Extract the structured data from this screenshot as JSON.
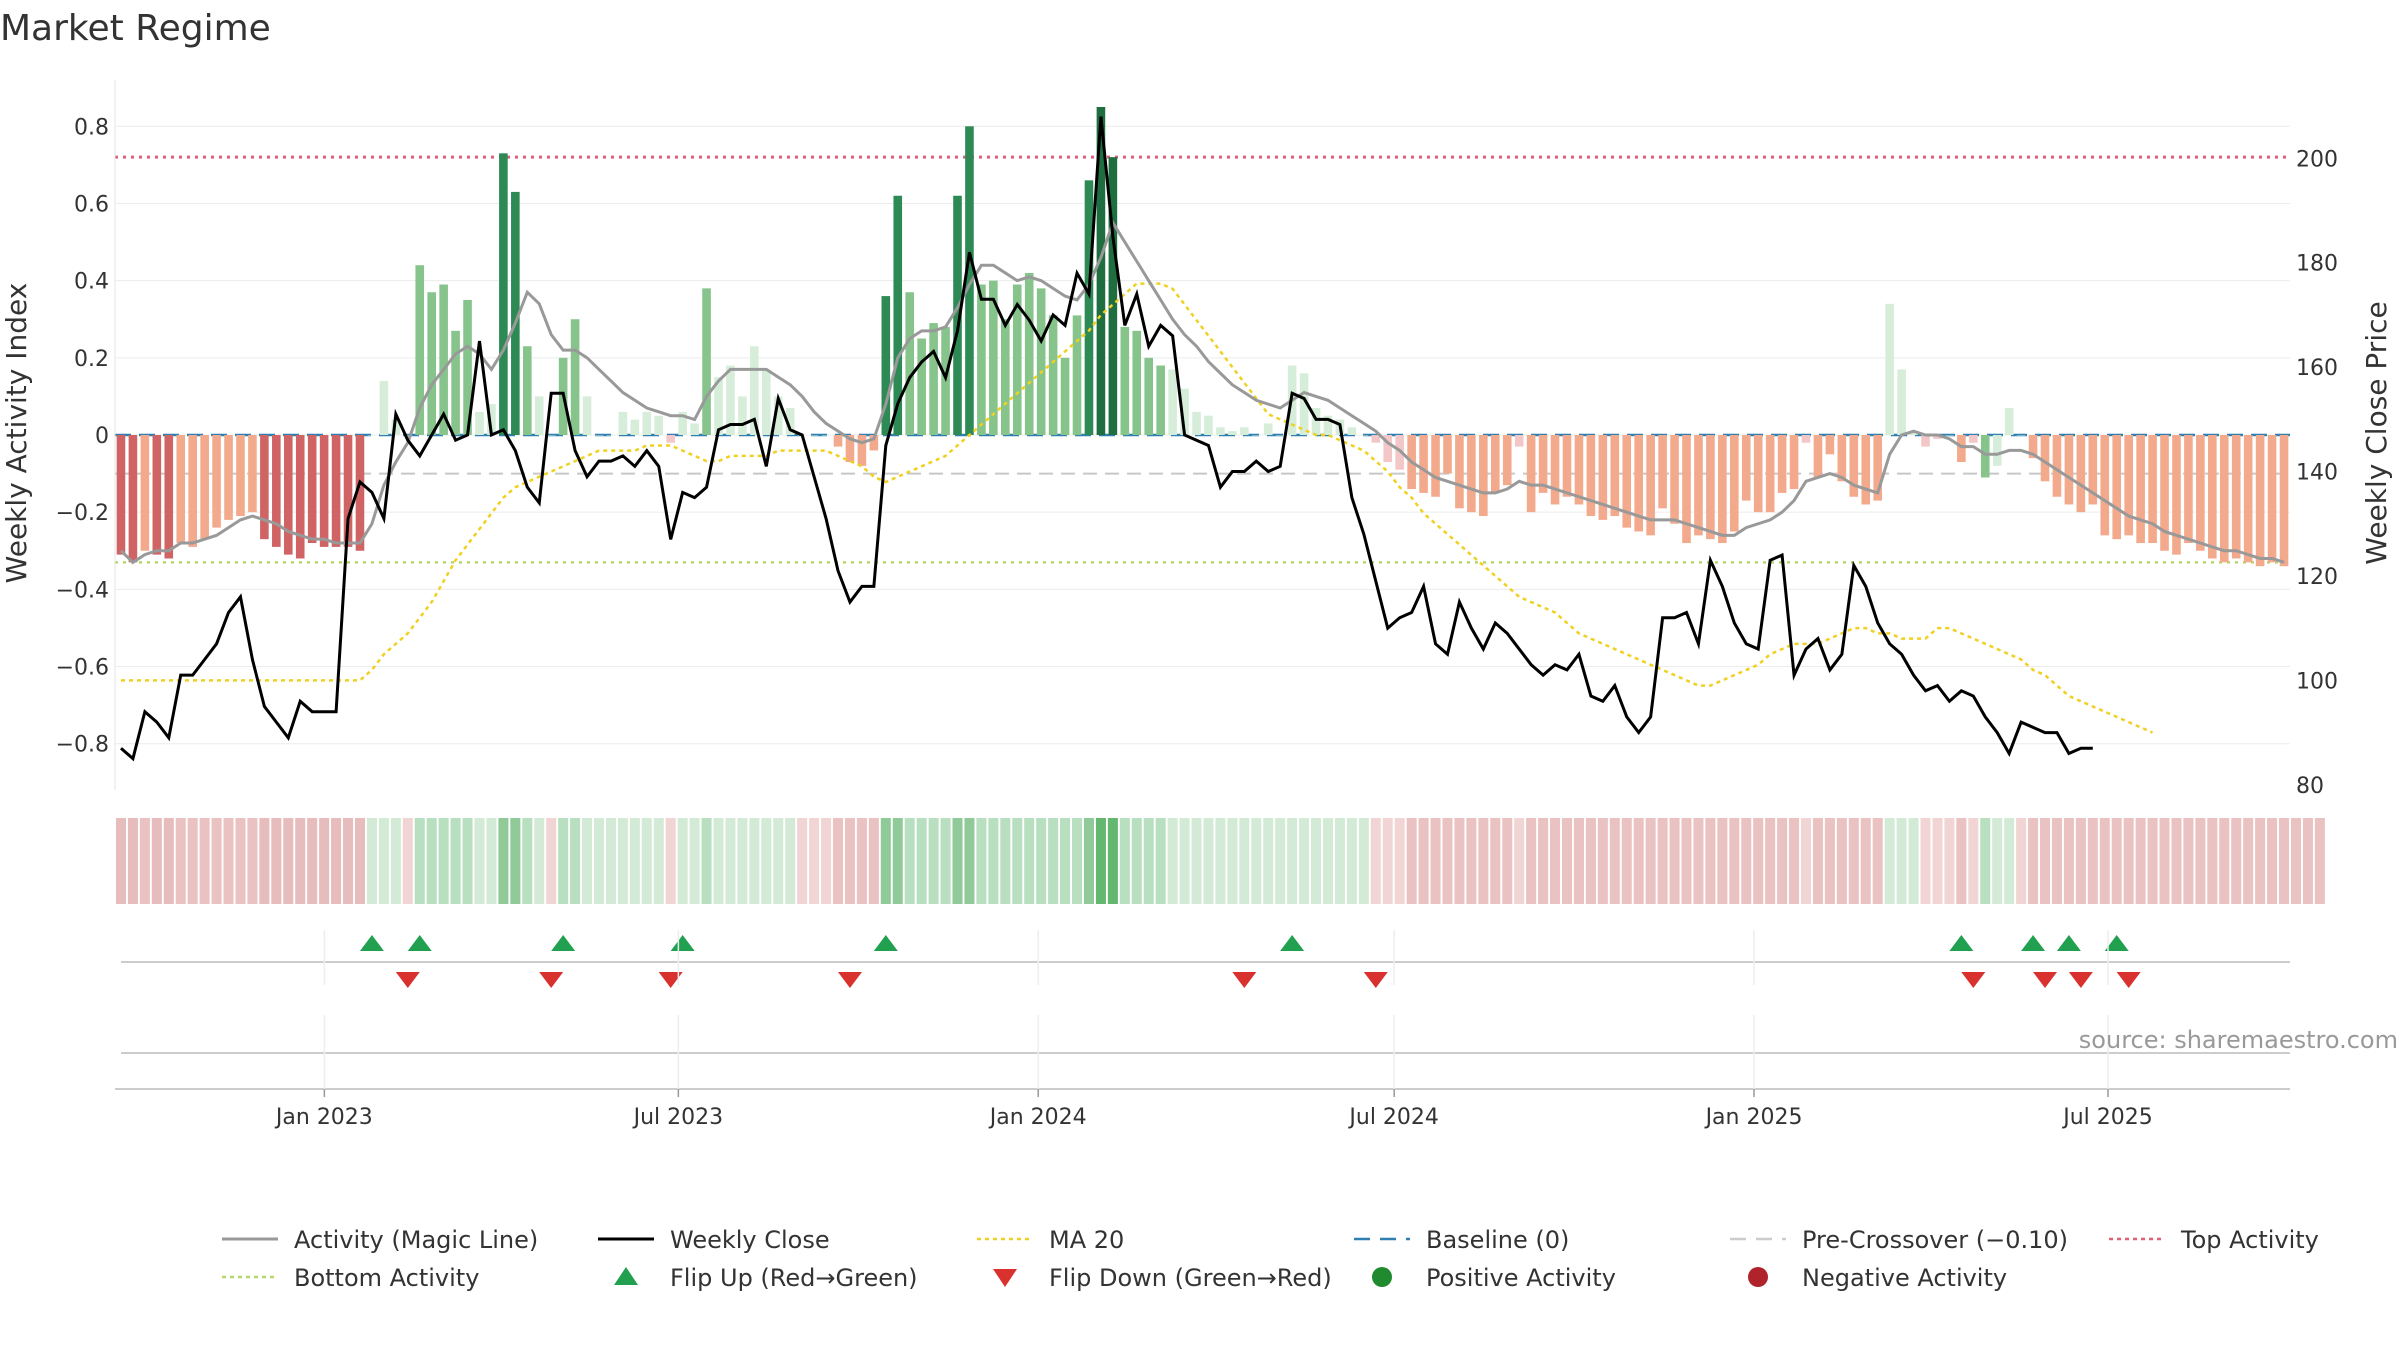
{
  "chart_data": {
    "type": "bar",
    "title": "Market Regime",
    "ylabel_left": "Weekly Activity Index",
    "ylabel_right": "Weekly Close Price",
    "ylim_left": [
      -0.92,
      0.92
    ],
    "ylim_right": [
      79,
      215
    ],
    "yticks_left": [
      0.8,
      0.6,
      0.4,
      0.2,
      0,
      -0.2,
      -0.4,
      -0.6,
      -0.8
    ],
    "yticks_left_labels": [
      "0.8",
      "0.6",
      "0.4",
      "0.2",
      "0",
      "−0.2",
      "−0.4",
      "−0.6",
      "−0.8"
    ],
    "yticks_right": [
      200,
      180,
      160,
      140,
      120,
      100,
      80
    ],
    "yticks_right_labels": [
      "200",
      "180",
      "160",
      "140",
      "120",
      "100",
      "80"
    ],
    "x_start": "2022-09-19",
    "x_end": "2025-09-29",
    "x_ticks": [
      {
        "date": "2023-01-01",
        "label": "Jan 2023"
      },
      {
        "date": "2023-07-01",
        "label": "Jul 2023"
      },
      {
        "date": "2024-01-01",
        "label": "Jan 2024"
      },
      {
        "date": "2024-07-01",
        "label": "Jul 2024"
      },
      {
        "date": "2025-01-01",
        "label": "Jan 2025"
      },
      {
        "date": "2025-07-01",
        "label": "Jul 2025"
      }
    ],
    "top_activity": 0.72,
    "bottom_activity": -0.33,
    "pre_crossover": -0.1,
    "baseline": 0,
    "activity": [
      -0.31,
      -0.33,
      -0.3,
      -0.31,
      -0.32,
      -0.28,
      -0.29,
      -0.27,
      -0.24,
      -0.22,
      -0.21,
      -0.2,
      -0.27,
      -0.29,
      -0.31,
      -0.32,
      -0.28,
      -0.29,
      -0.29,
      -0.29,
      -0.3,
      0.0,
      0.14,
      0.04,
      0.0,
      0.44,
      0.37,
      0.39,
      0.27,
      0.35,
      0.06,
      0.08,
      0.73,
      0.63,
      0.23,
      0.1,
      0.0,
      0.2,
      0.3,
      0.1,
      0.0,
      0.0,
      0.06,
      0.04,
      0.06,
      0.05,
      -0.02,
      0.06,
      0.03,
      0.38,
      0.15,
      0.18,
      0.1,
      0.23,
      0.17,
      0.1,
      0.07,
      0.0,
      0.0,
      0.0,
      -0.03,
      -0.07,
      -0.08,
      -0.04,
      0.36,
      0.62,
      0.37,
      0.25,
      0.29,
      0.28,
      0.62,
      0.8,
      0.39,
      0.4,
      0.3,
      0.39,
      0.42,
      0.38,
      0.31,
      0.2,
      0.31,
      0.66,
      0.85,
      0.72,
      0.28,
      0.27,
      0.2,
      0.18,
      0.17,
      0.12,
      0.06,
      0.05,
      0.02,
      0.01,
      0.02,
      0.0,
      0.03,
      0.0,
      0.18,
      0.16,
      0.07,
      0.05,
      0.04,
      0.02,
      0.0,
      -0.02,
      -0.07,
      -0.09,
      -0.14,
      -0.15,
      -0.16,
      -0.1,
      -0.19,
      -0.2,
      -0.21,
      -0.15,
      -0.13,
      -0.03,
      -0.2,
      -0.15,
      -0.18,
      -0.16,
      -0.18,
      -0.21,
      -0.22,
      -0.21,
      -0.24,
      -0.25,
      -0.26,
      -0.19,
      -0.23,
      -0.28,
      -0.26,
      -0.27,
      -0.28,
      -0.25,
      -0.17,
      -0.2,
      -0.2,
      -0.15,
      -0.14,
      -0.02,
      -0.11,
      -0.05,
      -0.12,
      -0.16,
      -0.18,
      -0.17,
      0.34,
      0.17,
      0.01,
      -0.03,
      -0.01,
      0.0,
      -0.07,
      -0.02,
      -0.11,
      -0.08,
      0.07,
      0.0,
      -0.06,
      -0.12,
      -0.16,
      -0.18,
      -0.2,
      -0.18,
      -0.26,
      -0.27,
      -0.26,
      -0.28,
      -0.28,
      -0.3,
      -0.31,
      -0.28,
      -0.3,
      -0.32,
      -0.33,
      -0.32,
      -0.33,
      -0.34,
      -0.33,
      -0.34
    ],
    "magic_line": [
      -0.3,
      -0.33,
      -0.31,
      -0.3,
      -0.3,
      -0.28,
      -0.28,
      -0.27,
      -0.26,
      -0.24,
      -0.22,
      -0.21,
      -0.22,
      -0.23,
      -0.25,
      -0.26,
      -0.27,
      -0.27,
      -0.28,
      -0.28,
      -0.28,
      -0.23,
      -0.13,
      -0.07,
      -0.02,
      0.07,
      0.13,
      0.17,
      0.21,
      0.23,
      0.21,
      0.17,
      0.22,
      0.29,
      0.37,
      0.34,
      0.26,
      0.22,
      0.22,
      0.2,
      0.17,
      0.14,
      0.11,
      0.09,
      0.07,
      0.06,
      0.05,
      0.05,
      0.04,
      0.1,
      0.14,
      0.17,
      0.17,
      0.17,
      0.17,
      0.15,
      0.13,
      0.1,
      0.06,
      0.03,
      0.01,
      -0.01,
      -0.02,
      -0.01,
      0.08,
      0.2,
      0.25,
      0.27,
      0.27,
      0.28,
      0.33,
      0.39,
      0.44,
      0.44,
      0.42,
      0.4,
      0.41,
      0.4,
      0.38,
      0.36,
      0.35,
      0.39,
      0.46,
      0.55,
      0.5,
      0.45,
      0.4,
      0.35,
      0.3,
      0.26,
      0.23,
      0.19,
      0.16,
      0.13,
      0.11,
      0.09,
      0.08,
      0.07,
      0.09,
      0.11,
      0.1,
      0.09,
      0.07,
      0.05,
      0.03,
      0.01,
      -0.02,
      -0.04,
      -0.07,
      -0.09,
      -0.11,
      -0.12,
      -0.13,
      -0.14,
      -0.15,
      -0.15,
      -0.14,
      -0.12,
      -0.13,
      -0.13,
      -0.14,
      -0.15,
      -0.16,
      -0.17,
      -0.18,
      -0.19,
      -0.2,
      -0.21,
      -0.22,
      -0.22,
      -0.22,
      -0.23,
      -0.24,
      -0.25,
      -0.26,
      -0.26,
      -0.24,
      -0.23,
      -0.22,
      -0.2,
      -0.17,
      -0.12,
      -0.11,
      -0.1,
      -0.11,
      -0.13,
      -0.14,
      -0.15,
      -0.05,
      0.0,
      0.01,
      0.0,
      0.0,
      -0.01,
      -0.03,
      -0.03,
      -0.05,
      -0.05,
      -0.04,
      -0.04,
      -0.05,
      -0.07,
      -0.09,
      -0.11,
      -0.13,
      -0.15,
      -0.17,
      -0.19,
      -0.21,
      -0.22,
      -0.23,
      -0.25,
      -0.26,
      -0.27,
      -0.28,
      -0.29,
      -0.3,
      -0.3,
      -0.31,
      -0.32,
      -0.32,
      -0.33
    ],
    "weekly_close": [
      87,
      85,
      94,
      92,
      89,
      101,
      101,
      104,
      107,
      113,
      116,
      104,
      95,
      92,
      89,
      96,
      94,
      94,
      94,
      131,
      138,
      136,
      131,
      151,
      146,
      143,
      147,
      151,
      146,
      147,
      165,
      147,
      148,
      144,
      137,
      134,
      155,
      155,
      144,
      139,
      142,
      142,
      143,
      141,
      144,
      141,
      127,
      136,
      135,
      137,
      148,
      149,
      149,
      150,
      141,
      154,
      148,
      147,
      139,
      131,
      121,
      115,
      118,
      118,
      145,
      153,
      158,
      161,
      163,
      158,
      167,
      182,
      173,
      173,
      168,
      172,
      169,
      165,
      170,
      168,
      178,
      174,
      208,
      185,
      168,
      174,
      164,
      168,
      166,
      147,
      146,
      145,
      137,
      140,
      140,
      142,
      140,
      141,
      155,
      154,
      150,
      150,
      149,
      135,
      128,
      119,
      110,
      112,
      113,
      118,
      107,
      105,
      115,
      110,
      106,
      111,
      109,
      106,
      103,
      101,
      103,
      102,
      105,
      97,
      96,
      99,
      93,
      90,
      93,
      112,
      112,
      113,
      107,
      123,
      118,
      111,
      107,
      106,
      123,
      124,
      101,
      106,
      108,
      102,
      105,
      122,
      118,
      111,
      107,
      105,
      101,
      98,
      99,
      96,
      98,
      97,
      93,
      90,
      86,
      92,
      91,
      90,
      90,
      86,
      87,
      87
    ],
    "ma20": [
      100,
      100,
      100,
      100,
      100,
      100,
      100,
      100,
      100,
      100,
      100,
      100,
      100,
      100,
      100,
      100,
      100,
      100,
      100,
      100,
      100,
      102,
      105,
      107,
      109,
      112,
      115,
      119,
      123,
      126,
      129,
      132,
      135,
      137,
      138,
      139,
      140,
      141,
      142,
      143,
      144,
      144,
      144,
      144,
      145,
      145,
      145,
      144,
      143,
      142,
      142,
      143,
      143,
      143,
      143,
      144,
      144,
      144,
      144,
      144,
      143,
      142,
      141,
      139,
      138,
      139,
      140,
      141,
      142,
      143,
      145,
      147,
      149,
      151,
      153,
      155,
      157,
      159,
      161,
      163,
      165,
      167,
      170,
      172,
      174,
      176,
      176,
      176,
      175,
      172,
      169,
      166,
      163,
      160,
      157,
      154,
      151,
      150,
      149,
      148,
      147,
      147,
      146,
      145,
      144,
      142,
      140,
      137,
      135,
      132,
      130,
      128,
      126,
      124,
      122,
      120,
      118,
      116,
      115,
      114,
      113,
      111,
      109,
      108,
      107,
      106,
      105,
      104,
      103,
      102,
      101,
      100,
      99,
      99,
      100,
      101,
      102,
      103,
      105,
      106,
      107,
      107,
      107,
      108,
      109,
      110,
      110,
      109,
      109,
      108,
      108,
      108,
      110,
      110,
      109,
      108,
      107,
      106,
      105,
      104,
      102,
      101,
      99,
      97,
      96,
      95,
      94,
      93,
      92,
      91,
      90
    ],
    "color_levels": [
      -3,
      -3,
      -2,
      -3,
      -3,
      -2,
      -2,
      -2,
      -2,
      -2,
      -2,
      -2,
      -3,
      -3,
      -3,
      -3,
      -3,
      -3,
      -3,
      -3,
      -3,
      1,
      1,
      1,
      -1,
      2,
      2,
      2,
      2,
      2,
      1,
      1,
      3,
      3,
      2,
      1,
      -1,
      2,
      2,
      1,
      1,
      1,
      1,
      1,
      1,
      1,
      -1,
      1,
      1,
      2,
      1,
      1,
      1,
      1,
      1,
      1,
      1,
      -1,
      -1,
      -1,
      -2,
      -2,
      -2,
      -2,
      3,
      3,
      2,
      2,
      2,
      2,
      3,
      3,
      2,
      2,
      2,
      2,
      2,
      2,
      2,
      2,
      2,
      3,
      4,
      4,
      2,
      2,
      2,
      2,
      1,
      1,
      1,
      1,
      1,
      1,
      1,
      1,
      1,
      1,
      1,
      1,
      1,
      1,
      1,
      1,
      1,
      -1,
      -1,
      -1,
      -2,
      -2,
      -2,
      -2,
      -2,
      -2,
      -2,
      -2,
      -2,
      -1,
      -2,
      -2,
      -2,
      -2,
      -2,
      -2,
      -2,
      -2,
      -2,
      -2,
      -2,
      -2,
      -2,
      -2,
      -2,
      -2,
      -2,
      -2,
      -2,
      -2,
      -2,
      -2,
      -2,
      -1,
      -2,
      -2,
      -2,
      -2,
      -2,
      -2,
      1,
      1,
      1,
      -1,
      -1,
      -1,
      -2,
      -1,
      2,
      1,
      1,
      -1,
      -2,
      -2,
      -2,
      -2,
      -2,
      -2,
      -2,
      -2,
      -2,
      -2,
      -2,
      -2,
      -2,
      -2,
      -2,
      -2,
      -2,
      -2,
      -2,
      -2,
      -2,
      -2,
      -2,
      -2,
      -2
    ],
    "flips_up": [
      21,
      25,
      37,
      47,
      64,
      98,
      154,
      160,
      163,
      167
    ],
    "flips_down": [
      24,
      36,
      46,
      61,
      94,
      105,
      155,
      161,
      164,
      168
    ],
    "legend": [
      {
        "label": "Activity (Magic Line)",
        "marker": "line",
        "color": "#999999"
      },
      {
        "label": "Weekly Close",
        "marker": "line",
        "color": "#000000"
      },
      {
        "label": "MA 20",
        "marker": "dotted",
        "color": "#f0d020"
      },
      {
        "label": "Baseline (0)",
        "marker": "dashed",
        "color": "#2f7fb0"
      },
      {
        "label": "Pre-Crossover (−0.10)",
        "marker": "dashed",
        "color": "#cccccc"
      },
      {
        "label": "Top Activity",
        "marker": "dotted",
        "color": "#e0607a"
      },
      {
        "label": "Bottom Activity",
        "marker": "dotted",
        "color": "#b5d86a"
      },
      {
        "label": "Flip Up (Red→Green)",
        "marker": "triangle-up",
        "color": "#21a150"
      },
      {
        "label": "Flip Down (Green→Red)",
        "marker": "triangle-down",
        "color": "#d9312e"
      },
      {
        "label": "Positive Activity",
        "marker": "circle",
        "color": "#1f8a2e"
      },
      {
        "label": "Negative Activity",
        "marker": "circle",
        "color": "#b0232a"
      }
    ],
    "source": "source: sharemaestro.com"
  },
  "colors": {
    "pos": [
      "#d6eed9",
      "#86c48c",
      "#2e8a55",
      "#1f6e3f"
    ],
    "neg": [
      "#f3c7c7",
      "#f2a98c",
      "#d06464",
      "#c95456"
    ],
    "strip_pos": [
      "#d3ead6",
      "#b8dfbf",
      "#8fca98",
      "#63b76f"
    ],
    "strip_neg": [
      "#f1d5d5",
      "#eac2c2",
      "#e6bcbc",
      "#e0adad"
    ]
  }
}
